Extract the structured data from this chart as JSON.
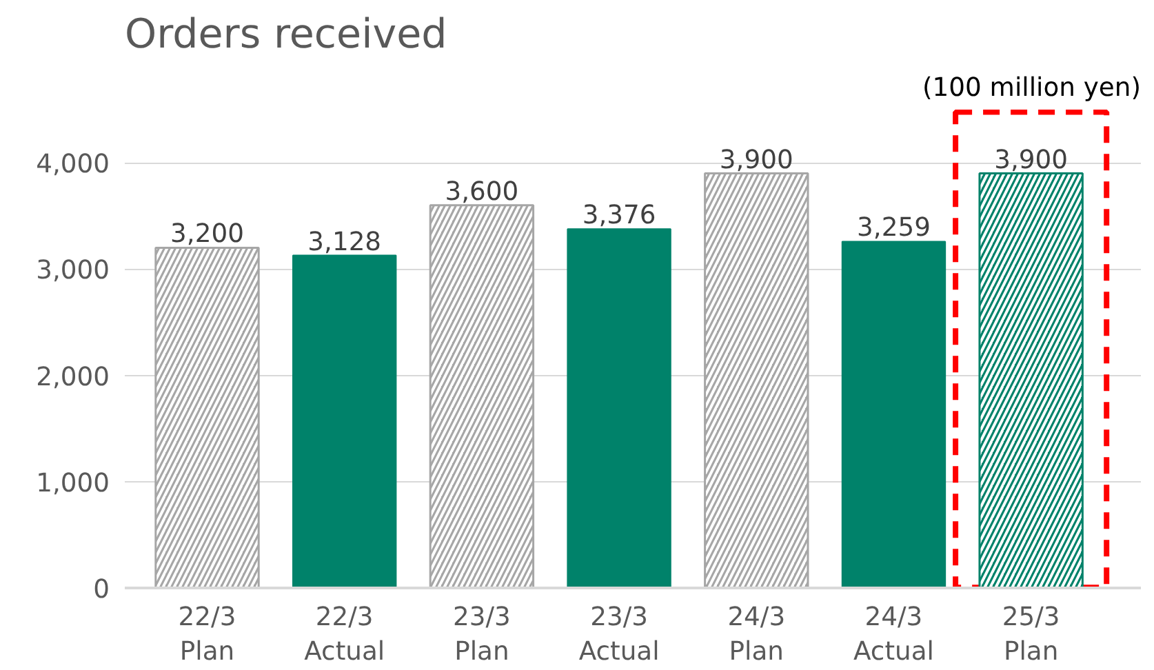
{
  "chart_data": {
    "type": "bar",
    "title": "Orders received",
    "annotations": [
      "(100 million yen)"
    ],
    "categories": [
      "22/3\nPlan",
      "22/3\nActual",
      "23/3\nPlan",
      "23/3\nActual",
      "24/3\nPlan",
      "24/3\nActual",
      "25/3\nPlan"
    ],
    "series": [
      {
        "values": [
          3200,
          null,
          3600,
          null,
          3900,
          null,
          3900
        ],
        "value_labels": [
          "3,200",
          null,
          "3,600",
          null,
          "3,900",
          null,
          "3,900"
        ],
        "colors": [
          "#a6a6a6",
          null,
          "#a6a6a6",
          null,
          "#a6a6a6",
          null,
          "#00826a"
        ]
      },
      {
        "values": [
          null,
          3128,
          null,
          3376,
          null,
          3259,
          null
        ],
        "value_labels": [
          null,
          "3,128",
          null,
          "3,376",
          null,
          "3,259",
          null
        ],
        "color": "#00826a"
      }
    ],
    "ylim": [
      0,
      4500
    ],
    "yticks": [
      {
        "value": 0,
        "label": "0"
      },
      {
        "value": 1000,
        "label": "1,000"
      },
      {
        "value": 2000,
        "label": "2,000"
      },
      {
        "value": 3000,
        "label": "3,000"
      },
      {
        "value": 4000,
        "label": "4,000"
      }
    ],
    "grid": "y"
  }
}
